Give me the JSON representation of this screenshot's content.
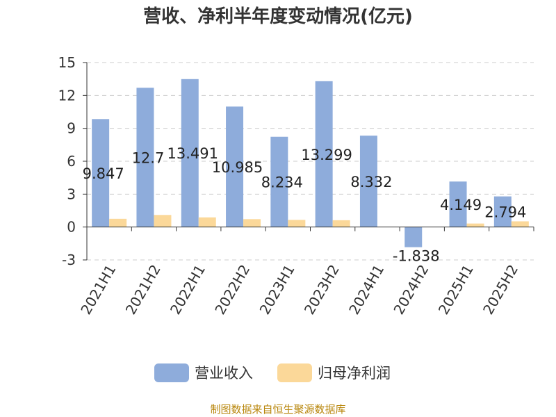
{
  "chart_data": {
    "type": "bar",
    "title": "营收、净利半年度变动情况(亿元)",
    "categories": [
      "2021H1",
      "2021H2",
      "2022H1",
      "2022H2",
      "2023H1",
      "2023H2",
      "2024H1",
      "2024H2",
      "2025H1",
      "2025H2"
    ],
    "series": [
      {
        "name": "营业收入",
        "color": "#8eacdb",
        "values": [
          9.847,
          12.7,
          13.491,
          10.985,
          8.234,
          13.299,
          8.332,
          -1.838,
          4.149,
          2.794
        ],
        "labels": [
          "9.847",
          "12.7",
          "13.491",
          "10.985",
          "8.234",
          "13.299",
          "8.332",
          "-1.838",
          "4.149",
          "2.794"
        ]
      },
      {
        "name": "归母净利润",
        "color": "#fbd899",
        "values": [
          0.75,
          1.1,
          0.88,
          0.72,
          0.65,
          0.62,
          0.0,
          0.0,
          0.32,
          0.52
        ]
      }
    ],
    "yticks": [
      -3,
      0,
      3,
      6,
      9,
      12,
      15
    ],
    "ylim": [
      -3,
      15
    ],
    "xlabel": "",
    "ylabel": "",
    "grid": true,
    "legend_position": "bottom"
  },
  "source_text": "制图数据来自恒生聚源数据库"
}
